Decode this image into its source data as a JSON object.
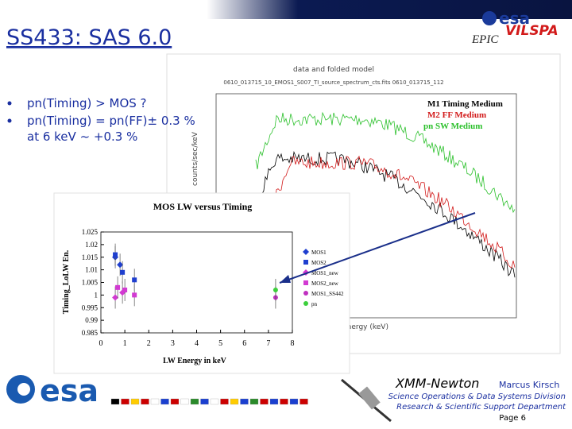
{
  "header": {
    "title": "SS433: SAS 6.0",
    "logo": "esa",
    "brand": "EPIC",
    "subbrand": "VILSPA"
  },
  "bullets": [
    "pn(Timing) > MOS  ?",
    "pn(Timing) = pn(FF)± 0.3 %",
    "at 6 keV ~ +0.3 %"
  ],
  "spectrum": {
    "title": "data and folded model",
    "subtitle": "0610_013715_10_EMOS1_S007_TI_source_spectrum_cts.fits  0610_013715_112",
    "legend": [
      "M1 Timing Medium",
      "M2 FF Medium",
      "pn  SW Medium"
    ],
    "xlabel": "Energy (keV)",
    "ylabel": "counts/sec/keV"
  },
  "inset_chart": {
    "type": "scatter",
    "title": "MOS LW versus Timing",
    "xlabel": "LW Energy in keV",
    "ylabel": "Timing_LoLW En.",
    "xlim": [
      0,
      8
    ],
    "ylim": [
      0.985,
      1.025
    ],
    "xticks": [
      0,
      1,
      2,
      3,
      4,
      5,
      6,
      7,
      8
    ],
    "yticks": [
      0.985,
      0.99,
      0.995,
      1,
      1.005,
      1.01,
      1.015,
      1.02,
      1.025
    ],
    "series": [
      {
        "name": "MOS1",
        "color": "#1f3fcf",
        "marker": "diamond",
        "x": [
          0.6,
          0.8
        ],
        "values": [
          1.015,
          1.012
        ]
      },
      {
        "name": "MOS2",
        "color": "#1f3fcf",
        "marker": "square",
        "x": [
          0.6,
          0.9,
          1.4
        ],
        "values": [
          1.016,
          1.009,
          1.006
        ]
      },
      {
        "name": "MOS1_new",
        "color": "#d23ad2",
        "marker": "diamond",
        "x": [
          0.6,
          0.9
        ],
        "values": [
          0.999,
          1.001
        ]
      },
      {
        "name": "MOS2_new",
        "color": "#d23ad2",
        "marker": "square",
        "x": [
          0.7,
          1.0,
          1.4
        ],
        "values": [
          1.003,
          1.002,
          1.0
        ]
      },
      {
        "name": "MOS1_SS442",
        "color": "#c030c0",
        "marker": "circle",
        "x": [
          7.3
        ],
        "values": [
          0.999
        ]
      },
      {
        "name": "pn",
        "color": "#3ccf3c",
        "marker": "circle",
        "x": [
          7.3
        ],
        "values": [
          1.002
        ]
      }
    ]
  },
  "footer": {
    "logo": "esa",
    "mission": "XMM-Newton",
    "author": "Marcus Kirsch",
    "division": "Science Operations & Data Systems Division",
    "department": "Research & Scientific Support Department",
    "page": "Page 6"
  }
}
